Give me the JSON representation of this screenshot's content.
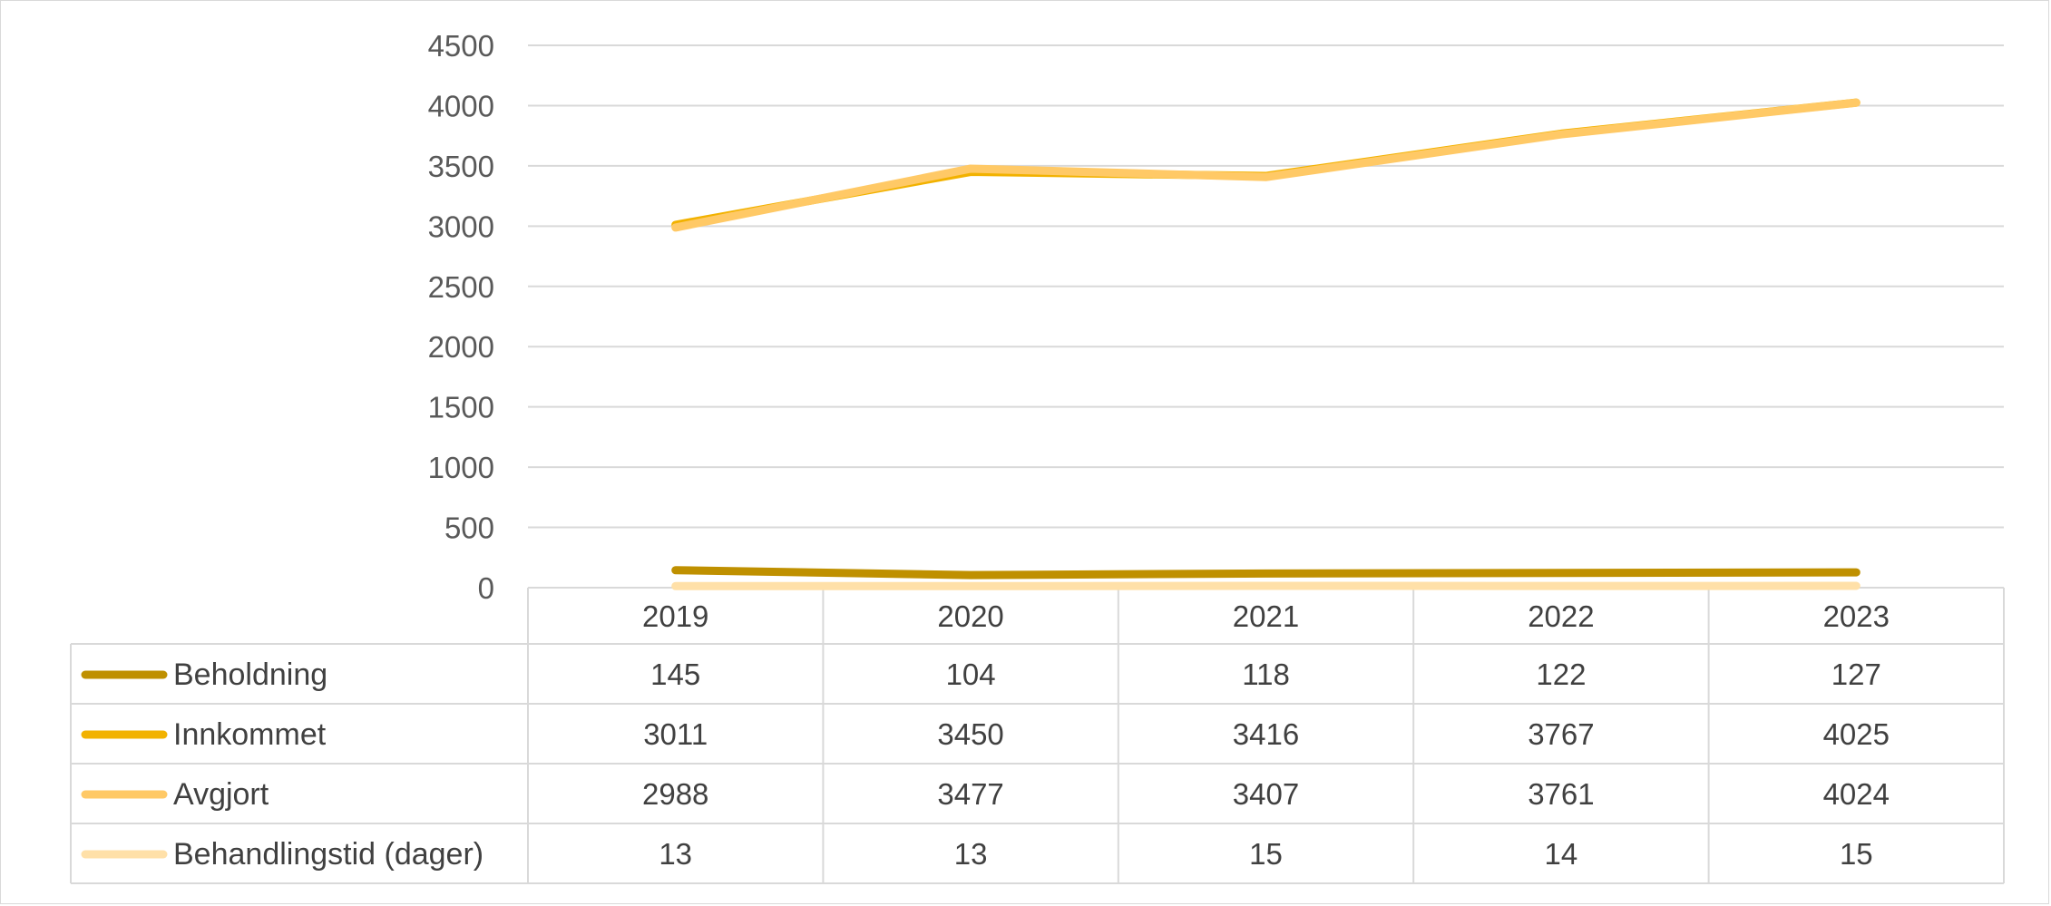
{
  "chart_data": {
    "type": "line",
    "title": "",
    "xlabel": "",
    "ylabel": "",
    "categories": [
      "2019",
      "2020",
      "2021",
      "2022",
      "2023"
    ],
    "ylim": [
      0,
      4500
    ],
    "yticks": [
      0,
      500,
      1000,
      1500,
      2000,
      2500,
      3000,
      3500,
      4000,
      4500
    ],
    "grid": true,
    "legend": "data-table-left",
    "series": [
      {
        "name": "Beholdning",
        "color": "#bf9000",
        "values": [
          145,
          104,
          118,
          122,
          127
        ]
      },
      {
        "name": "Innkommet",
        "color": "#f2b200",
        "values": [
          3011,
          3450,
          3416,
          3767,
          4025
        ]
      },
      {
        "name": "Avgjort",
        "color": "#ffc966",
        "values": [
          2988,
          3477,
          3407,
          3761,
          4024
        ]
      },
      {
        "name": "Behandlingstid (dager)",
        "color": "#ffe0a8",
        "values": [
          13,
          13,
          15,
          14,
          15
        ]
      }
    ]
  }
}
